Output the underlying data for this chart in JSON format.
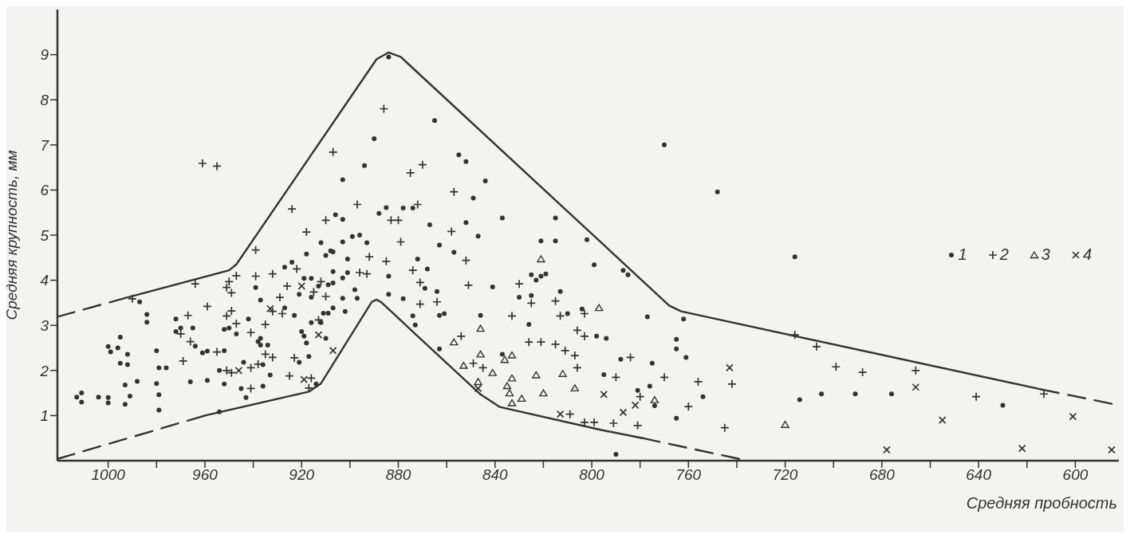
{
  "chart_data": {
    "type": "scatter",
    "xlabel": "Средняя пробность",
    "ylabel": "Средняя крупность, мм",
    "xlim": [
      1021,
      582
    ],
    "ylim": [
      0,
      10
    ],
    "xticks": [
      {
        "value": 1000,
        "label": "1000"
      },
      {
        "value": 980,
        "label": null
      },
      {
        "value": 960,
        "label": "960"
      },
      {
        "value": 940,
        "label": null
      },
      {
        "value": 920,
        "label": "920"
      },
      {
        "value": 900,
        "label": null
      },
      {
        "value": 880,
        "label": "880"
      },
      {
        "value": 860,
        "label": null
      },
      {
        "value": 840,
        "label": "840"
      },
      {
        "value": 820,
        "label": null
      },
      {
        "value": 800,
        "label": "800"
      },
      {
        "value": 780,
        "label": null
      },
      {
        "value": 760,
        "label": "760"
      },
      {
        "value": 740,
        "label": null
      },
      {
        "value": 720,
        "label": "720"
      },
      {
        "value": 700,
        "label": null
      },
      {
        "value": 680,
        "label": "680"
      },
      {
        "value": 660,
        "label": null
      },
      {
        "value": 640,
        "label": "640"
      },
      {
        "value": 620,
        "label": null
      },
      {
        "value": 600,
        "label": "600"
      }
    ],
    "yticks": [
      1,
      2,
      3,
      4,
      5,
      6,
      7,
      8,
      9
    ],
    "legend": "right",
    "series": [
      {
        "name": "1",
        "color": "#333333",
        "marker": "circle",
        "x": [
          1013,
          1011,
          1011,
          1004,
          1000,
          1000,
          993,
          991,
          993,
          988,
          1000,
          999,
          996,
          995,
          992,
          995,
          992,
          987,
          984,
          984,
          980,
          979,
          976,
          980,
          979,
          979,
          972,
          970,
          972,
          965,
          964,
          966,
          961,
          959,
          959,
          952,
          954,
          952,
          952,
          950,
          954,
          947,
          884,
          890,
          894,
          903,
          885,
          888,
          878,
          874,
          906,
          903,
          899,
          896,
          893,
          903,
          912,
          918,
          908,
          907,
          910,
          901,
          927,
          924,
          916,
          919,
          907,
          903,
          901,
          884,
          872,
          939,
          937,
          921,
          916,
          913,
          909,
          907,
          903,
          898,
          897,
          884,
          878,
          927,
          923,
          911,
          909,
          907,
          902,
          942,
          937,
          937,
          934,
          938,
          920,
          919,
          918,
          916,
          912,
          910,
          944,
          936,
          933,
          921,
          917,
          914,
          945,
          943,
          936,
          874,
          873,
          865,
          855,
          852,
          844,
          849,
          837,
          815,
          852,
          867,
          847,
          821,
          815,
          802,
          863,
          857,
          799,
          868,
          825,
          823,
          821,
          819,
          869,
          864,
          841,
          830,
          825,
          813,
          863,
          861,
          846,
          810,
          804,
          798,
          826,
          863,
          837,
          770,
          748,
          787,
          785,
          777,
          762,
          794,
          765,
          765,
          761,
          788,
          775,
          795,
          776,
          781,
          774,
          754,
          765,
          790,
          716,
          714,
          705,
          691,
          676,
          630
        ],
        "values": [
          1.41,
          1.5,
          1.3,
          1.41,
          1.28,
          1.4,
          1.25,
          1.43,
          1.68,
          1.76,
          2.53,
          2.41,
          2.5,
          2.74,
          2.36,
          2.16,
          2.13,
          3.52,
          3.24,
          3.07,
          2.44,
          2.06,
          2.06,
          1.71,
          1.46,
          1.12,
          3.14,
          2.94,
          2.86,
          2.94,
          2.54,
          1.75,
          2.39,
          2.43,
          1.78,
          2.44,
          2.0,
          1.7,
          2.91,
          2.94,
          1.08,
          2.81,
          8.95,
          7.14,
          6.54,
          6.23,
          5.61,
          5.48,
          5.6,
          5.6,
          5.45,
          5.35,
          4.97,
          5.0,
          4.83,
          4.85,
          4.83,
          4.58,
          4.65,
          4.63,
          4.55,
          4.47,
          4.29,
          4.4,
          4.04,
          4.04,
          4.19,
          4.05,
          4.17,
          4.09,
          4.47,
          3.84,
          3.56,
          3.69,
          3.62,
          3.87,
          3.9,
          3.94,
          3.6,
          3.79,
          3.6,
          3.69,
          3.59,
          3.39,
          3.22,
          3.27,
          3.27,
          3.39,
          3.31,
          3.14,
          2.71,
          2.56,
          2.56,
          2.64,
          2.86,
          2.76,
          2.61,
          3.06,
          3.06,
          2.71,
          2.18,
          2.13,
          1.9,
          2.18,
          2.31,
          1.7,
          1.6,
          1.4,
          1.65,
          3.21,
          3.01,
          7.54,
          6.78,
          6.63,
          6.2,
          5.82,
          5.38,
          5.38,
          5.28,
          5.23,
          4.98,
          4.87,
          4.87,
          4.9,
          4.78,
          4.62,
          4.34,
          4.25,
          4.12,
          4.0,
          4.09,
          4.14,
          3.82,
          3.75,
          3.85,
          3.62,
          3.66,
          3.75,
          3.22,
          3.26,
          3.22,
          3.26,
          3.36,
          2.76,
          3.02,
          2.48,
          2.36,
          7.0,
          5.96,
          4.22,
          4.12,
          3.19,
          3.14,
          2.71,
          2.69,
          2.48,
          2.29,
          2.25,
          2.16,
          1.91,
          1.65,
          1.56,
          1.22,
          1.42,
          0.94,
          0.14,
          4.52,
          1.35,
          1.48,
          1.48,
          1.48,
          1.23
        ]
      },
      {
        "name": "2",
        "color": "#333333",
        "marker": "plus",
        "x": [
          961,
          955,
          990,
          964,
          967,
          970,
          966,
          969,
          959,
          955,
          951,
          949,
          950,
          951,
          949,
          949,
          951,
          947,
          947,
          886,
          907,
          875,
          924,
          897,
          910,
          883,
          880,
          872,
          918,
          879,
          939,
          892,
          885,
          922,
          874,
          896,
          893,
          939,
          932,
          926,
          912,
          915,
          910,
          929,
          871,
          932,
          928,
          935,
          913,
          941,
          935,
          932,
          923,
          941,
          938,
          925,
          916,
          941,
          917,
          870,
          857,
          858,
          852,
          851,
          830,
          871,
          864,
          825,
          815,
          833,
          813,
          803,
          854,
          826,
          821,
          815,
          811,
          807,
          806,
          803,
          849,
          845,
          806,
          809,
          803,
          799,
          784,
          790,
          770,
          756,
          742,
          780,
          760,
          791,
          781,
          745,
          716,
          707,
          699,
          688,
          666,
          641,
          613
        ],
        "values": [
          6.59,
          6.53,
          3.59,
          3.92,
          3.22,
          2.81,
          2.64,
          2.21,
          3.42,
          2.41,
          2.0,
          1.95,
          3.97,
          3.84,
          3.72,
          3.32,
          3.21,
          3.04,
          4.1,
          7.8,
          6.84,
          6.38,
          5.58,
          5.68,
          5.33,
          5.33,
          5.33,
          5.68,
          5.07,
          4.85,
          4.67,
          4.52,
          4.42,
          4.25,
          4.22,
          4.17,
          4.14,
          4.09,
          4.14,
          3.87,
          3.97,
          3.74,
          3.64,
          3.62,
          3.47,
          3.31,
          3.26,
          3.02,
          3.12,
          2.84,
          2.36,
          2.29,
          2.28,
          2.06,
          2.14,
          1.88,
          1.83,
          1.6,
          1.61,
          6.56,
          5.96,
          5.08,
          4.44,
          3.89,
          3.92,
          3.95,
          3.52,
          3.49,
          3.54,
          3.21,
          3.21,
          3.26,
          2.76,
          2.63,
          2.63,
          2.58,
          2.44,
          2.33,
          2.89,
          2.76,
          2.16,
          2.06,
          2.06,
          1.03,
          0.85,
          0.85,
          2.29,
          1.85,
          1.85,
          1.75,
          1.7,
          1.42,
          1.2,
          0.83,
          0.78,
          0.73,
          2.79,
          2.53,
          2.08,
          1.96,
          2.0,
          1.42,
          1.48
        ]
      },
      {
        "name": "3",
        "color": "#333333",
        "marker": "triangle",
        "x": [
          821,
          797,
          846,
          857,
          846,
          833,
          836,
          853,
          841,
          823,
          812,
          833,
          847,
          835,
          807,
          834,
          820,
          829,
          833,
          774,
          720
        ],
        "values": [
          4.47,
          3.39,
          2.93,
          2.63,
          2.36,
          2.34,
          2.24,
          2.11,
          1.95,
          1.9,
          1.93,
          1.83,
          1.75,
          1.66,
          1.61,
          1.5,
          1.5,
          1.38,
          1.28,
          1.35,
          0.8
        ]
      },
      {
        "name": "4",
        "color": "#333333",
        "marker": "cross",
        "x": [
          920,
          933,
          913,
          907,
          946,
          919,
          847,
          813,
          743,
          795,
          782,
          787,
          666,
          655,
          601,
          678,
          622,
          585
        ],
        "values": [
          3.87,
          3.37,
          2.79,
          2.44,
          2.0,
          1.8,
          1.6,
          1.03,
          2.06,
          1.47,
          1.23,
          1.07,
          1.63,
          0.9,
          0.98,
          0.24,
          0.27,
          0.24
        ]
      },
      {
        "type": "line",
        "color": "#333333",
        "line_style": "dashed",
        "x": [
          1021,
          992
        ],
        "values": [
          3.19,
          3.62
        ]
      },
      {
        "type": "line",
        "color": "#333333",
        "line_style": "solid",
        "x": [
          992,
          950,
          947,
          889,
          884,
          879,
          768,
          763,
          614
        ],
        "values": [
          3.62,
          4.22,
          4.35,
          8.9,
          9.05,
          8.95,
          3.44,
          3.31,
          1.58
        ]
      },
      {
        "type": "line",
        "color": "#333333",
        "line_style": "dashed",
        "x": [
          614,
          582
        ],
        "values": [
          1.58,
          1.23
        ]
      },
      {
        "type": "line",
        "color": "#333333",
        "line_style": "dashed",
        "x": [
          1021,
          960
        ],
        "values": [
          0.04,
          1.0
        ]
      },
      {
        "type": "line",
        "color": "#333333",
        "line_style": "solid",
        "x": [
          960,
          917,
          912,
          891,
          889,
          887,
          871,
          846,
          838,
          796,
          779
        ],
        "values": [
          1.0,
          1.53,
          1.71,
          3.52,
          3.57,
          3.51,
          2.71,
          1.47,
          1.19,
          0.68,
          0.5
        ]
      },
      {
        "type": "line",
        "color": "#333333",
        "line_style": "dashed",
        "x": [
          779,
          739
        ],
        "values": [
          0.5,
          0.04
        ]
      }
    ]
  }
}
